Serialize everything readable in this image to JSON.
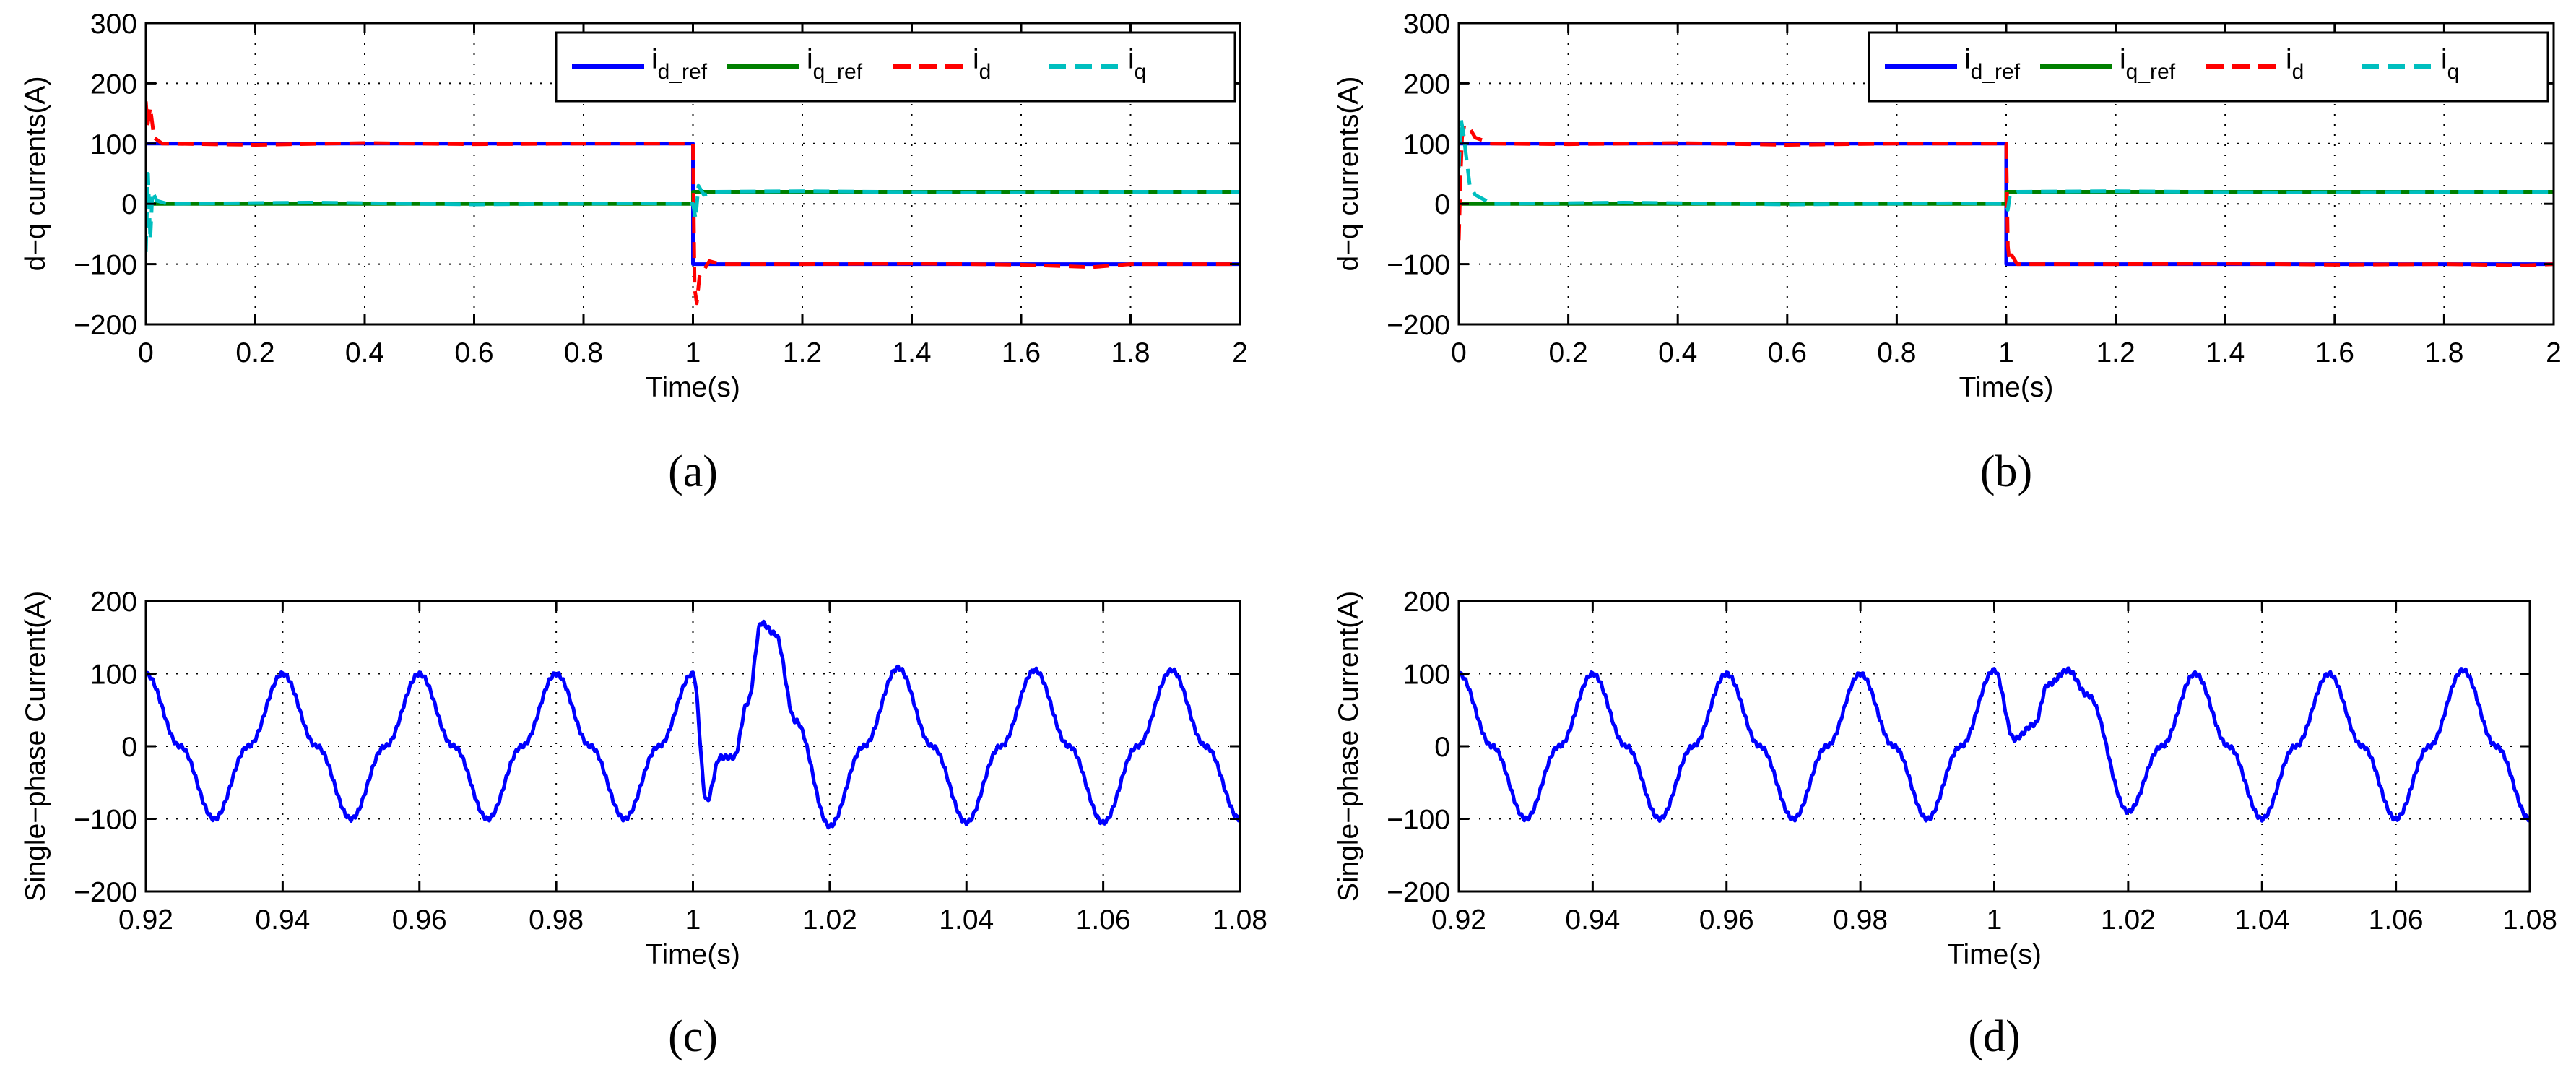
{
  "figure": {
    "panels": [
      "a",
      "b",
      "c",
      "d"
    ]
  },
  "chart_data": [
    {
      "id": "a",
      "caption": "(a)",
      "type": "line",
      "title": "",
      "xlabel": "Time(s)",
      "ylabel": "d−q currents(A)",
      "xlim": [
        0,
        2
      ],
      "ylim": [
        -200,
        300
      ],
      "xticks": [
        0,
        0.2,
        0.4,
        0.6,
        0.8,
        1,
        1.2,
        1.4,
        1.6,
        1.8,
        2
      ],
      "xtick_labels": [
        "0",
        "0.2",
        "0.4",
        "0.6",
        "0.8",
        "1",
        "1.2",
        "1.4",
        "1.6",
        "1.8",
        "2"
      ],
      "yticks": [
        -200,
        -100,
        0,
        100,
        200,
        300
      ],
      "ytick_labels": [
        "−200",
        "−100",
        "0",
        "100",
        "200",
        "300"
      ],
      "grid": true,
      "legend_position": "top-right",
      "colors": {
        "i_d_ref": "#0000ff",
        "i_q_ref": "#008000",
        "i_d": "#ff0000",
        "i_q": "#00bfbf"
      },
      "legend": [
        {
          "key": "i_d_ref",
          "base": "i",
          "sub": "d_ref",
          "style": "solid"
        },
        {
          "key": "i_q_ref",
          "base": "i",
          "sub": "q_ref",
          "style": "solid"
        },
        {
          "key": "i_d",
          "base": "i",
          "sub": "d",
          "style": "dashed"
        },
        {
          "key": "i_q",
          "base": "i",
          "sub": "q",
          "style": "dashed"
        }
      ],
      "series": [
        {
          "name": "i_d_ref",
          "x": [
            0,
            1,
            1,
            2
          ],
          "y": [
            100,
            100,
            -100,
            -100
          ]
        },
        {
          "name": "i_q_ref",
          "x": [
            0,
            1,
            1,
            2
          ],
          "y": [
            0,
            0,
            20,
            20
          ]
        },
        {
          "name": "i_d",
          "x": [
            0,
            0.003,
            0.008,
            0.015,
            0.03,
            0.2,
            0.4,
            0.6,
            0.8,
            0.995,
            1.0,
            1.003,
            1.007,
            1.012,
            1.02,
            1.03,
            1.05,
            1.2,
            1.4,
            1.6,
            1.73,
            1.8,
            2
          ],
          "y": [
            170,
            130,
            160,
            110,
            100,
            98,
            101,
            99,
            100,
            100,
            100,
            -140,
            -165,
            -120,
            -110,
            -95,
            -100,
            -100,
            -99,
            -101,
            -105,
            -100,
            -100
          ]
        },
        {
          "name": "i_q",
          "x": [
            0,
            0.004,
            0.008,
            0.012,
            0.02,
            0.04,
            0.3,
            0.6,
            0.9,
            0.995,
            1.0,
            1.005,
            1.01,
            1.02,
            1.04,
            1.2,
            1.5,
            1.8,
            2
          ],
          "y": [
            -80,
            50,
            -60,
            20,
            5,
            0,
            2,
            -1,
            1,
            0,
            0,
            -25,
            30,
            15,
            20,
            21,
            19,
            20,
            20
          ]
        }
      ]
    },
    {
      "id": "b",
      "caption": "(b)",
      "type": "line",
      "title": "",
      "xlabel": "Time(s)",
      "ylabel": "d−q currents(A)",
      "xlim": [
        0,
        2
      ],
      "ylim": [
        -200,
        300
      ],
      "xticks": [
        0,
        0.2,
        0.4,
        0.6,
        0.8,
        1,
        1.2,
        1.4,
        1.6,
        1.8,
        2
      ],
      "xtick_labels": [
        "0",
        "0.2",
        "0.4",
        "0.6",
        "0.8",
        "1",
        "1.2",
        "1.4",
        "1.6",
        "1.8",
        "2"
      ],
      "yticks": [
        -200,
        -100,
        0,
        100,
        200,
        300
      ],
      "ytick_labels": [
        "−200",
        "−100",
        "0",
        "100",
        "200",
        "300"
      ],
      "grid": true,
      "legend_position": "top-right",
      "colors": {
        "i_d_ref": "#0000ff",
        "i_q_ref": "#008000",
        "i_d": "#ff0000",
        "i_q": "#00bfbf"
      },
      "legend": [
        {
          "key": "i_d_ref",
          "base": "i",
          "sub": "d_ref",
          "style": "solid"
        },
        {
          "key": "i_q_ref",
          "base": "i",
          "sub": "q_ref",
          "style": "solid"
        },
        {
          "key": "i_d",
          "base": "i",
          "sub": "d",
          "style": "dashed"
        },
        {
          "key": "i_q",
          "base": "i",
          "sub": "q",
          "style": "dashed"
        }
      ],
      "series": [
        {
          "name": "i_d_ref",
          "x": [
            0,
            1,
            1,
            2
          ],
          "y": [
            100,
            100,
            -100,
            -100
          ]
        },
        {
          "name": "i_q_ref",
          "x": [
            0,
            1,
            1,
            2
          ],
          "y": [
            0,
            0,
            20,
            20
          ]
        },
        {
          "name": "i_d",
          "x": [
            0,
            0.003,
            0.006,
            0.01,
            0.02,
            0.03,
            0.06,
            0.2,
            0.4,
            0.6,
            0.8,
            0.995,
            1.0,
            1.003,
            1.006,
            1.01,
            1.02,
            1.2,
            1.4,
            1.6,
            1.8,
            1.95,
            2
          ],
          "y": [
            -60,
            40,
            110,
            130,
            125,
            110,
            100,
            99,
            101,
            98,
            100,
            100,
            100,
            -70,
            -95,
            -85,
            -100,
            -100,
            -99,
            -101,
            -100,
            -102,
            -100
          ]
        },
        {
          "name": "i_q",
          "x": [
            0,
            0.004,
            0.008,
            0.012,
            0.02,
            0.03,
            0.06,
            0.3,
            0.6,
            0.9,
            0.995,
            1.0,
            1.003,
            1.007,
            1.02,
            1.2,
            1.5,
            1.8,
            2
          ],
          "y": [
            60,
            140,
            120,
            90,
            30,
            15,
            0,
            2,
            -1,
            1,
            0,
            0,
            -10,
            15,
            20,
            21,
            19,
            20,
            20
          ]
        }
      ]
    },
    {
      "id": "c",
      "caption": "(c)",
      "type": "line",
      "title": "",
      "xlabel": "Time(s)",
      "ylabel": "Single−phase Current(A)",
      "xlim": [
        0.92,
        1.08
      ],
      "ylim": [
        -200,
        200
      ],
      "xticks": [
        0.92,
        0.94,
        0.96,
        0.98,
        1,
        1.02,
        1.04,
        1.06,
        1.08
      ],
      "xtick_labels": [
        "0.92",
        "0.94",
        "0.96",
        "0.98",
        "1",
        "1.02",
        "1.04",
        "1.06",
        "1.08"
      ],
      "yticks": [
        -200,
        -100,
        0,
        100,
        200
      ],
      "ytick_labels": [
        "−200",
        "−100",
        "0",
        "100",
        "200"
      ],
      "grid": true,
      "colors": {
        "current": "#0000ff"
      },
      "series": [
        {
          "name": "current",
          "x": [
            0.92,
            0.925,
            0.93,
            0.935,
            0.94,
            0.945,
            0.95,
            0.955,
            0.96,
            0.965,
            0.97,
            0.975,
            0.98,
            0.985,
            0.99,
            0.995,
            1.0,
            1.002,
            1.004,
            1.006,
            1.008,
            1.01,
            1.012,
            1.015,
            1.02,
            1.025,
            1.03,
            1.035,
            1.04,
            1.045,
            1.05,
            1.055,
            1.06,
            1.065,
            1.07,
            1.075,
            1.08
          ],
          "y": [
            100,
            0,
            -100,
            0,
            100,
            0,
            -100,
            0,
            100,
            0,
            -100,
            0,
            100,
            0,
            -100,
            0,
            100,
            -75,
            -15,
            -15,
            60,
            170,
            155,
            35,
            -110,
            0,
            108,
            0,
            -105,
            0,
            105,
            0,
            -105,
            0,
            105,
            0,
            -100
          ]
        }
      ]
    },
    {
      "id": "d",
      "caption": "(d)",
      "type": "line",
      "title": "",
      "xlabel": "Time(s)",
      "ylabel": "Single−phase Current(A)",
      "xlim": [
        0.92,
        1.08
      ],
      "ylim": [
        -200,
        200
      ],
      "xticks": [
        0.92,
        0.94,
        0.96,
        0.98,
        1,
        1.02,
        1.04,
        1.06,
        1.08
      ],
      "xtick_labels": [
        "0.92",
        "0.94",
        "0.96",
        "0.98",
        "1",
        "1.02",
        "1.04",
        "1.06",
        "1.08"
      ],
      "yticks": [
        -200,
        -100,
        0,
        100,
        200
      ],
      "ytick_labels": [
        "−200",
        "−100",
        "0",
        "100",
        "200"
      ],
      "grid": true,
      "colors": {
        "current": "#0000ff"
      },
      "series": [
        {
          "name": "current",
          "x": [
            0.92,
            0.925,
            0.93,
            0.935,
            0.94,
            0.945,
            0.95,
            0.955,
            0.96,
            0.965,
            0.97,
            0.975,
            0.98,
            0.985,
            0.99,
            0.995,
            1.0,
            1.003,
            1.006,
            1.008,
            1.011,
            1.014,
            1.02,
            1.025,
            1.03,
            1.035,
            1.04,
            1.045,
            1.05,
            1.055,
            1.06,
            1.065,
            1.07,
            1.075,
            1.08
          ],
          "y": [
            100,
            0,
            -100,
            0,
            100,
            0,
            -100,
            0,
            100,
            0,
            -100,
            0,
            100,
            0,
            -100,
            0,
            105,
            10,
            30,
            85,
            105,
            70,
            -90,
            0,
            100,
            0,
            -100,
            0,
            100,
            0,
            -100,
            0,
            105,
            0,
            -100
          ]
        }
      ]
    }
  ]
}
